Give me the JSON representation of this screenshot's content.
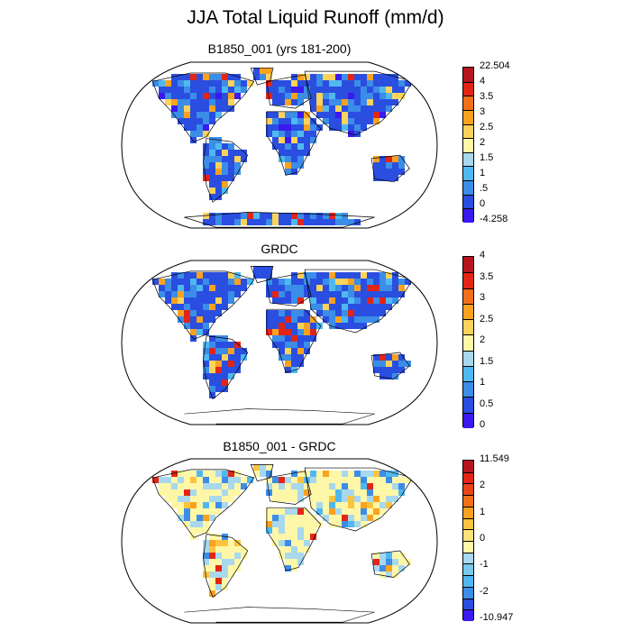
{
  "title": "JJA Total Liquid Runoff (mm/d)",
  "panels": [
    {
      "id": "model",
      "title": "B1850_001 (yrs 181-200)",
      "colorbar": {
        "colors": [
          "#3a1aee",
          "#2a4ee0",
          "#3b8de8",
          "#50b8f0",
          "#a8d8ee",
          "#fff7a8",
          "#fcd35a",
          "#f9a21f",
          "#f2701a",
          "#e32516",
          "#b7151e"
        ],
        "labels": [
          "22.504",
          "4",
          "3.5",
          "3",
          "2.5",
          "2",
          "1.5",
          "1",
          ".5",
          "0",
          "-4.258"
        ]
      }
    },
    {
      "id": "grdc",
      "title": "GRDC",
      "colorbar": {
        "colors": [
          "#3a1aee",
          "#2a4ee0",
          "#3b8de8",
          "#50b8f0",
          "#a8d8ee",
          "#fff7a8",
          "#fcd35a",
          "#f9a21f",
          "#f2701a",
          "#e32516",
          "#b7151e"
        ],
        "labels": [
          "4",
          "3.5",
          "3",
          "2.5",
          "2",
          "1.5",
          "1",
          "0.5",
          "0"
        ]
      }
    },
    {
      "id": "diff",
      "title": "B1850_001 - GRDC",
      "colorbar": {
        "colors": [
          "#3a1aee",
          "#2a4ee0",
          "#3b8de8",
          "#50b8f0",
          "#7ac8ec",
          "#a8d8ee",
          "#fff7a8",
          "#fde27a",
          "#fcc33f",
          "#f9a21f",
          "#f2701a",
          "#e8451a",
          "#e32516",
          "#b7151e"
        ],
        "labels": [
          "11.549",
          "2",
          "1",
          "0",
          "-1",
          "-2",
          "-10.947"
        ]
      }
    }
  ]
}
